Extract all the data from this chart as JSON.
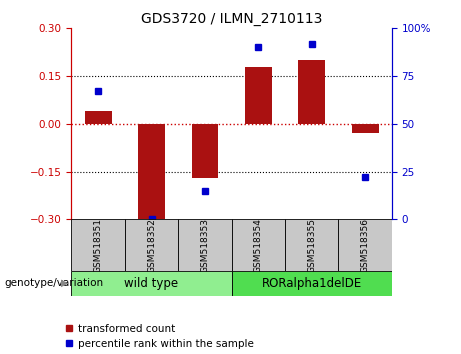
{
  "title": "GDS3720 / ILMN_2710113",
  "samples": [
    "GSM518351",
    "GSM518352",
    "GSM518353",
    "GSM518354",
    "GSM518355",
    "GSM518356"
  ],
  "transformed_counts": [
    0.04,
    -0.3,
    -0.17,
    0.18,
    0.2,
    -0.03
  ],
  "percentile_ranks": [
    67,
    0,
    15,
    90,
    92,
    22
  ],
  "ylim_left": [
    -0.3,
    0.3
  ],
  "ylim_right": [
    0,
    100
  ],
  "yticks_left": [
    -0.3,
    -0.15,
    0,
    0.15,
    0.3
  ],
  "yticks_right": [
    0,
    25,
    50,
    75,
    100
  ],
  "bar_color": "#AA1111",
  "dot_color": "#0000CC",
  "zero_line_color": "#CC0000",
  "grid_color": "#000000",
  "group1_label": "wild type",
  "group2_label": "RORalpha1delDE",
  "group1_color": "#90EE90",
  "group2_color": "#50C850",
  "group1_samples": [
    0,
    1,
    2
  ],
  "group2_samples": [
    3,
    4,
    5
  ],
  "genotype_label": "genotype/variation",
  "legend1": "transformed count",
  "legend2": "percentile rank within the sample",
  "axis_color_left": "#CC0000",
  "axis_color_right": "#0000CC",
  "bar_width": 0.5,
  "sample_bg": "#C8C8C8",
  "group1_bg": "#90EE90",
  "group2_bg": "#50DD50"
}
